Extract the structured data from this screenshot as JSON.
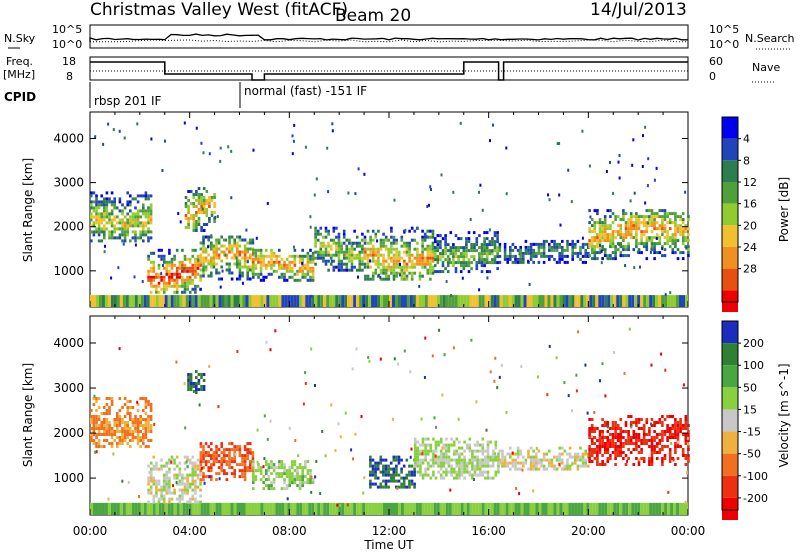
{
  "header": {
    "title": "Christmas Valley West (fitACF)",
    "beam": "Beam 20",
    "date": "14/Jul/2013"
  },
  "strips": {
    "nsky": {
      "label": "N.Sky",
      "tick_top": "10^5",
      "tick_bottom": "10^0"
    },
    "nsearch": {
      "label": "N.Search",
      "tick_top": "10^5",
      "tick_bottom": "10^0"
    },
    "freq": {
      "label_line1": "Freq.",
      "label_line2": "[MHz]",
      "tick_top": "18",
      "tick_bottom": "8"
    },
    "nave": {
      "label": "Nave",
      "tick_top": "60",
      "tick_bottom": "0"
    },
    "cpid": {
      "label": "CPID",
      "program1": "rbsp 201 IF",
      "program2": "normal (fast) -151 IF"
    }
  },
  "chart_data": [
    {
      "type": "heatmap",
      "parameter": "Power",
      "xlabel": "Time UT",
      "ylabel": "Slant Range [km]",
      "colorbar_label": "Power [dB]",
      "xlim_hours": [
        0,
        24
      ],
      "ylim_km": [
        180,
        4600
      ],
      "y_ticks": [
        "1000",
        "2000",
        "3000",
        "4000"
      ],
      "x_ticks": [
        "00:00",
        "04:00",
        "08:00",
        "12:00",
        "16:00",
        "20:00",
        "00:00"
      ],
      "colorbar_ticks": [
        "4",
        "8",
        "12",
        "16",
        "20",
        "24",
        "28"
      ],
      "colorbar_colors": [
        "#0000ee",
        "#2244bb",
        "#2e7d4f",
        "#4fa03a",
        "#8fcc30",
        "#f0c030",
        "#f09020",
        "#e85010",
        "#ee0000"
      ],
      "regions": [
        {
          "t0": 0.0,
          "t1": 2.5,
          "r0": 1700,
          "r1": 2800,
          "level": 0.45
        },
        {
          "t0": 2.3,
          "t1": 4.4,
          "r0": 500,
          "r1": 1500,
          "level": 0.7
        },
        {
          "t0": 3.8,
          "t1": 5.0,
          "r0": 1900,
          "r1": 2900,
          "level": 0.55
        },
        {
          "t0": 4.4,
          "t1": 6.5,
          "r0": 800,
          "r1": 1800,
          "level": 0.55
        },
        {
          "t0": 6.5,
          "t1": 9.0,
          "r0": 800,
          "r1": 1500,
          "level": 0.6
        },
        {
          "t0": 9.0,
          "t1": 11.0,
          "r0": 1000,
          "r1": 2000,
          "level": 0.4
        },
        {
          "t0": 11.0,
          "t1": 13.8,
          "r0": 800,
          "r1": 2000,
          "level": 0.55
        },
        {
          "t0": 13.8,
          "t1": 16.4,
          "r0": 1000,
          "r1": 1900,
          "level": 0.35
        },
        {
          "t0": 16.4,
          "t1": 20.0,
          "r0": 1200,
          "r1": 1700,
          "level": 0.25
        },
        {
          "t0": 20.0,
          "t1": 24.0,
          "r0": 1300,
          "r1": 2400,
          "level": 0.55
        }
      ]
    },
    {
      "type": "heatmap",
      "parameter": "Velocity",
      "xlabel": "Time UT",
      "ylabel": "Slant Range [km]",
      "colorbar_label": "Velocity [m s^-1]",
      "xlim_hours": [
        0,
        24
      ],
      "ylim_km": [
        180,
        4600
      ],
      "y_ticks": [
        "1000",
        "2000",
        "3000",
        "4000"
      ],
      "x_ticks": [
        "00:00",
        "04:00",
        "08:00",
        "12:00",
        "16:00",
        "20:00",
        "00:00"
      ],
      "colorbar_ticks": [
        "200",
        "100",
        "50",
        "15",
        "-15",
        "-50",
        "-100",
        "-200"
      ],
      "colorbar_colors": [
        "#1a2dbd",
        "#2f7f35",
        "#4aa640",
        "#88d040",
        "#c8c8c8",
        "#f0b040",
        "#f07020",
        "#ee3010",
        "#ee0000"
      ],
      "regions": [
        {
          "t0": 0.0,
          "t1": 2.5,
          "r0": 1700,
          "r1": 2800,
          "velocity": -60
        },
        {
          "t0": 2.3,
          "t1": 4.4,
          "r0": 500,
          "r1": 1500,
          "velocity": 0
        },
        {
          "t0": 3.9,
          "t1": 4.6,
          "r0": 2900,
          "r1": 3400,
          "velocity": 200
        },
        {
          "t0": 4.4,
          "t1": 6.5,
          "r0": 1000,
          "r1": 1800,
          "velocity": -90
        },
        {
          "t0": 6.5,
          "t1": 9.0,
          "r0": 800,
          "r1": 1400,
          "velocity": 30
        },
        {
          "t0": 11.2,
          "t1": 13.0,
          "r0": 800,
          "r1": 1500,
          "velocity": 200
        },
        {
          "t0": 13.0,
          "t1": 16.4,
          "r0": 1000,
          "r1": 1900,
          "velocity": 20
        },
        {
          "t0": 16.4,
          "t1": 20.0,
          "r0": 1200,
          "r1": 1700,
          "velocity": 0
        },
        {
          "t0": 20.0,
          "t1": 24.0,
          "r0": 1300,
          "r1": 2400,
          "velocity": -200
        }
      ]
    }
  ]
}
